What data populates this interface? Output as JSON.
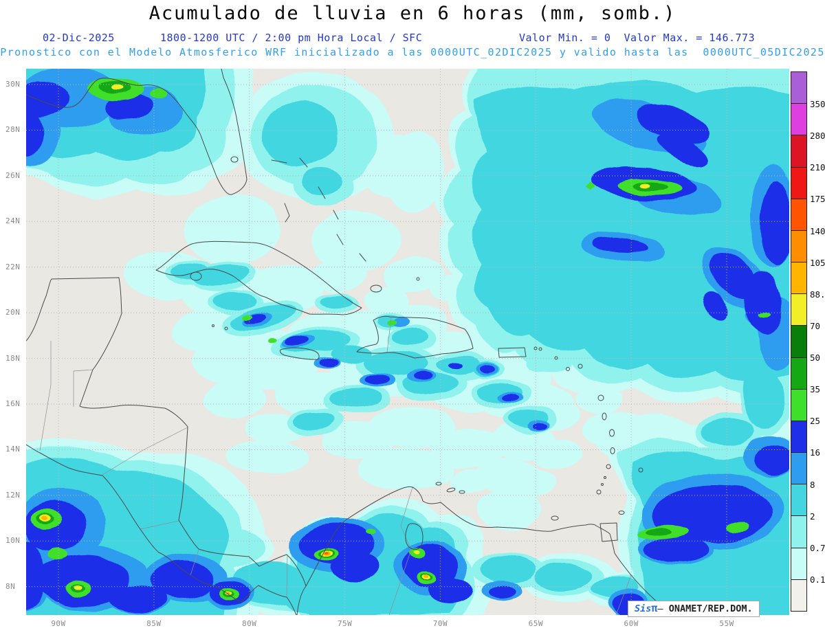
{
  "header": {
    "title": "Acumulado de lluvia en 6 horas (mm, somb.)",
    "date": "02-Dic-2025",
    "time_info": "1800-1200 UTC / 2:00 pm Hora Local / SFC",
    "min_max": "Valor Min. = 0  Valor Max. = 146.773",
    "model_info": "Pronostico con el Modelo Atmosferico WRF inicializado a las 0000UTC_02DIC2025 y valido hasta las  0000UTC_05DIC2025"
  },
  "map": {
    "lat_labels": [
      "30N",
      "28N",
      "26N",
      "24N",
      "22N",
      "20N",
      "18N",
      "16N",
      "14N",
      "12N",
      "10N",
      "8N"
    ],
    "lon_labels": [
      "90W",
      "85W",
      "80W",
      "75W",
      "70W",
      "65W",
      "60W",
      "55W"
    ]
  },
  "colorbar": {
    "labels": [
      "350",
      "280",
      "210",
      "175",
      "140",
      "105",
      "88.2",
      "70",
      "50",
      "35",
      "25",
      "16",
      "8",
      "2",
      "0.7",
      "0.1"
    ],
    "colors": [
      "#ab5fd6",
      "#df3fdf",
      "#dc1425",
      "#f01717",
      "#ff5500",
      "#ff8d00",
      "#ffb400",
      "#f2ee28",
      "#0b7d0b",
      "#15a715",
      "#3fe02b",
      "#1f2fe8",
      "#2e9df0",
      "#43d6e0",
      "#8ff2ec",
      "#c9fbf7",
      "#f2f1ec"
    ]
  },
  "watermark": {
    "brand": "Sis",
    "pi": "π",
    "sep": "–",
    "org": "ONAMET/REP.DOM."
  },
  "palette": {
    "land": "#e9e8e3",
    "coast": "#4a4a4a",
    "border": "#8f8f8f",
    "grid": "#b8b8b8",
    "title": "#0a0a0a",
    "blue": "#2238cc",
    "lightblue": "#2f9ff2",
    "brand": "#2b6fd4",
    "axis": "#8a8a8a"
  }
}
